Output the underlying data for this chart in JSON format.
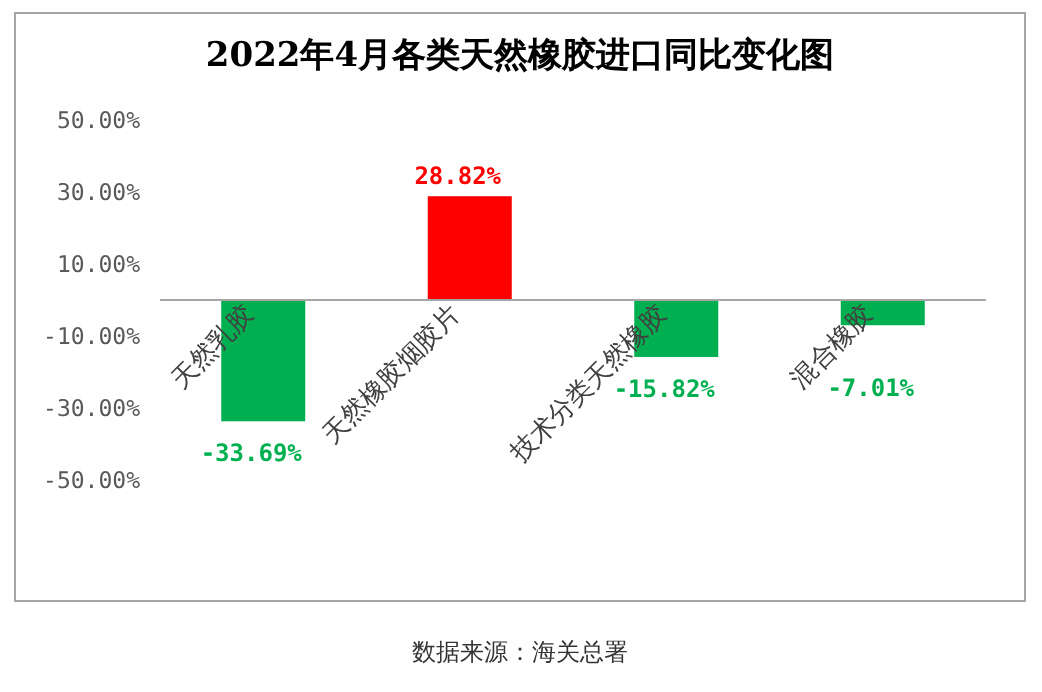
{
  "chart_data": {
    "type": "bar",
    "title": "2022年4月各类天然橡胶进口同比变化图",
    "categories": [
      "天然乳胶",
      "天然橡胶烟胶片",
      "技术分类天然橡胶",
      "混合橡胶"
    ],
    "values": [
      -33.69,
      28.82,
      -15.82,
      -7.01
    ],
    "colors": [
      "#00b050",
      "#ff0000",
      "#00b050",
      "#00b050"
    ],
    "value_labels": [
      "-33.69%",
      "28.82%",
      "-15.82%",
      "-7.01%"
    ],
    "ylim": [
      -50,
      50
    ],
    "yticks": [
      {
        "value": 50,
        "label": "50.00%"
      },
      {
        "value": 30,
        "label": "30.00%"
      },
      {
        "value": 10,
        "label": "10.00%"
      },
      {
        "value": -10,
        "label": "-10.00%"
      },
      {
        "value": -30,
        "label": "-30.00%"
      },
      {
        "value": -50,
        "label": "-50.00%"
      }
    ],
    "grid": false,
    "annotations": [
      "数据来源：海关总署"
    ]
  }
}
